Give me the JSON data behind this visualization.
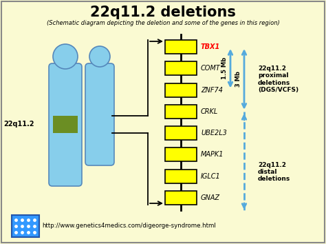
{
  "title": "22q11.2 deletions",
  "subtitle": "(Schematic diagram depicting the deletion and some of the genes in this region)",
  "background_color": "#FAFAD2",
  "border_color": "#888888",
  "genes": [
    "TBX1",
    "COMT",
    "ZNF74",
    "CRKL",
    "UBE2L3",
    "MAPK1",
    "IGLC1",
    "GNAZ"
  ],
  "tbx1_color": "#FF0000",
  "chromosome_color": "#87CEEB",
  "chromosome_edge_color": "#5588BB",
  "chromosome_band_color": "#6B8E23",
  "label_22q": "22q11.2",
  "arrow1_label": "1.5 Mb",
  "arrow2_label": "3 Mb",
  "proximal_label": "22q11.2\nproximal\ndeletions\n(DGS/VCFS)",
  "distal_label": "22q11.2\ndistal\ndeletions",
  "url": "http://www.genetics4medics.com/digeorge-syndrome.html",
  "arrow_color": "#55AADD",
  "url_box_color": "#3399FF"
}
